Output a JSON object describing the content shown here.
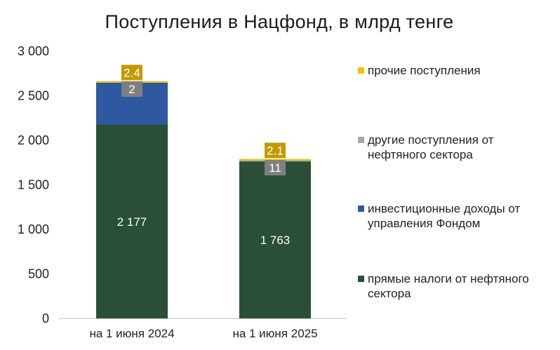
{
  "chart_data": {
    "type": "bar",
    "stacked": true,
    "title": "Поступления в Нацфонд, в млрд тенге",
    "categories": [
      "на 1 июня 2024",
      "на 1 июня 2025"
    ],
    "ylim": [
      0,
      3000
    ],
    "yticks": [
      0,
      500,
      1000,
      1500,
      2000,
      2500,
      3000
    ],
    "ytick_labels": [
      "0",
      "500",
      "1 000",
      "1 500",
      "2 000",
      "2 500",
      "3 000"
    ],
    "grid": false,
    "legend_position": "right",
    "series": [
      {
        "name": "прямые налоги от нефтяного сектора",
        "color": "#2a4e37",
        "values": [
          2177,
          1763
        ],
        "labels": [
          "2 177",
          "1 763"
        ],
        "label_color": "#2a4e37"
      },
      {
        "name": "инвестиционные доходы от управления Фондом",
        "color": "#2e58a0",
        "values": [
          469,
          0
        ],
        "labels": [
          "",
          ""
        ],
        "label_color": "#2e58a0"
      },
      {
        "name": "другие поступления от нефтяного сектора",
        "color": "#a8a8a8",
        "values": [
          2,
          11
        ],
        "labels": [
          "2",
          "11"
        ],
        "label_color": "#7f7f7f"
      },
      {
        "name": "прочие поступления",
        "color": "#f2c200",
        "values": [
          2.4,
          2.1
        ],
        "labels": [
          "2.4",
          "2.1"
        ],
        "label_color": "#c29a00"
      }
    ]
  }
}
